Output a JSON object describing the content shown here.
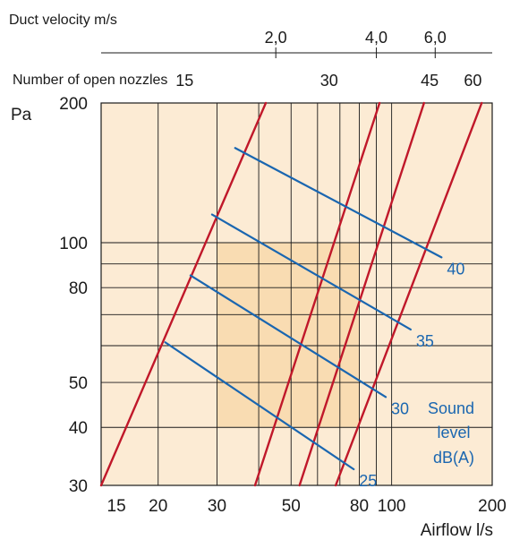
{
  "chart_data": {
    "type": "line",
    "x_axis": {
      "label": "Airflow l/s",
      "scale": "log",
      "range": [
        13.5,
        200
      ],
      "ticks": [
        15,
        20,
        30,
        50,
        80,
        100,
        200
      ],
      "tick_labels": [
        "15",
        "20",
        "30",
        "50",
        "80",
        "100",
        "200"
      ]
    },
    "y_axis": {
      "label": "Pa",
      "scale": "log",
      "range": [
        30,
        200
      ],
      "ticks": [
        30,
        40,
        50,
        80,
        100,
        200
      ],
      "tick_labels": [
        "30",
        "40",
        "50",
        "80",
        "100",
        "200"
      ]
    },
    "top_axis_velocity": {
      "label": "Duct velocity m/s",
      "ticks": [
        {
          "label": "2,0",
          "airflow": 45
        },
        {
          "label": "4,0",
          "airflow": 90
        },
        {
          "label": "6,0",
          "airflow": 135
        }
      ]
    },
    "top_axis_nozzles": {
      "label": "Number of open nozzles",
      "ticks": [
        {
          "label": "15",
          "airflow": 24
        },
        {
          "label": "30",
          "airflow": 65
        },
        {
          "label": "45",
          "airflow": 130
        },
        {
          "label": "60",
          "airflow": 175
        }
      ]
    },
    "nozzle_lines": [
      {
        "nozzles": 15,
        "points": [
          [
            13.5,
            30
          ],
          [
            42.0,
            200
          ]
        ]
      },
      {
        "nozzles": 30,
        "points": [
          [
            39.0,
            30
          ],
          [
            92.0,
            200
          ]
        ]
      },
      {
        "nozzles": 45,
        "points": [
          [
            53.0,
            30
          ],
          [
            125.0,
            200
          ]
        ]
      },
      {
        "nozzles": 60,
        "points": [
          [
            68.0,
            30
          ],
          [
            186.0,
            200
          ]
        ]
      }
    ],
    "sound_lines": [
      {
        "label": "25",
        "points": [
          [
            21.0,
            61.0
          ],
          [
            77.0,
            32.5
          ]
        ]
      },
      {
        "label": "30",
        "points": [
          [
            25.0,
            85.0
          ],
          [
            96.0,
            46.5
          ]
        ]
      },
      {
        "label": "35",
        "points": [
          [
            29.0,
            115.0
          ],
          [
            114.0,
            65.0
          ]
        ]
      },
      {
        "label": "40",
        "points": [
          [
            34.0,
            160.0
          ],
          [
            141.0,
            93.0
          ]
        ]
      }
    ],
    "sound_label": [
      "Sound",
      "level",
      "dB(A)"
    ],
    "highlight_region": {
      "x": [
        30,
        80
      ],
      "y": [
        40,
        100
      ]
    },
    "colors": {
      "background": "#fcebd4",
      "highlight": "#f9dcb2",
      "nozzle_line": "#c0182a",
      "sound_line": "#1a66b0",
      "grid": "#1a1a1a"
    }
  }
}
